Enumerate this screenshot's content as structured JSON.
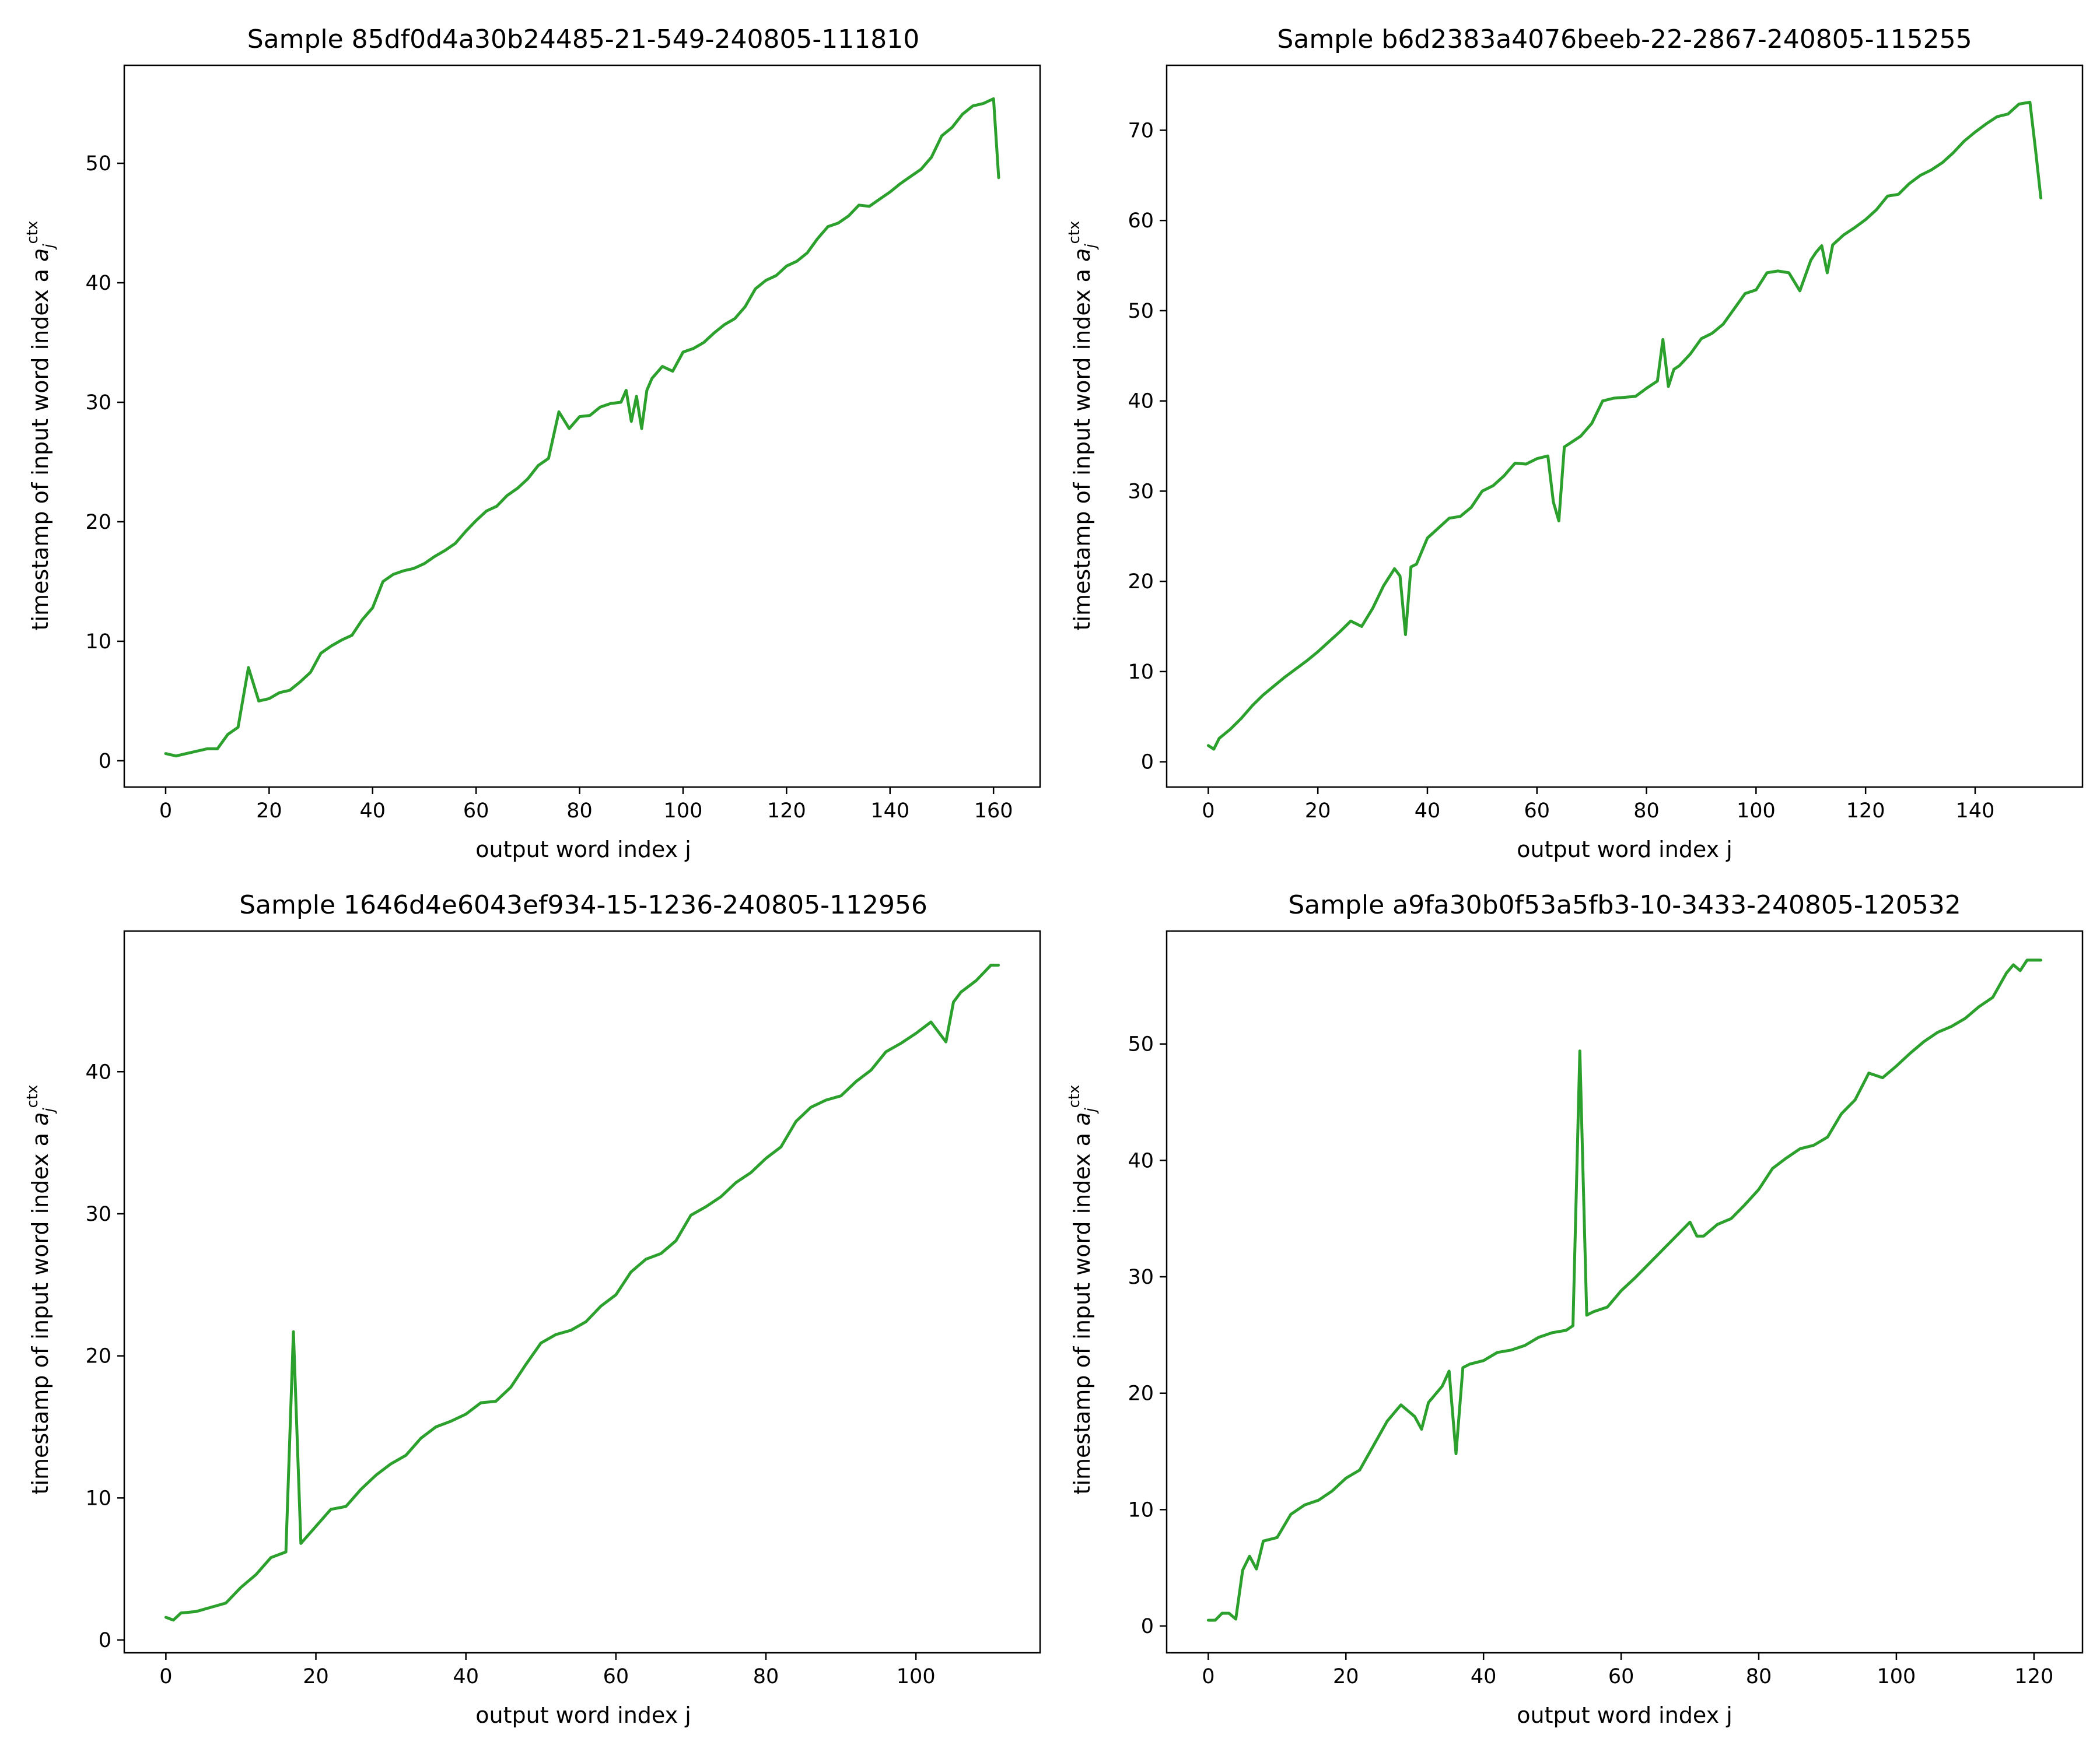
{
  "figure": {
    "line_color": "#2ca02c",
    "background": "#ffffff"
  },
  "chart_data": [
    {
      "type": "line",
      "title": "Sample 85df0d4a30b24485-21-549-240805-111810",
      "xlabel": "output word index j",
      "ylabel": "timestamp of input word index a",
      "ylabel_math": {
        "sub": "j",
        "sup": "ctx"
      },
      "xlim": [
        -8,
        169
      ],
      "ylim": [
        -2.2,
        58.2
      ],
      "xticks": [
        0,
        20,
        40,
        60,
        80,
        100,
        120,
        140,
        160
      ],
      "yticks": [
        0,
        10,
        20,
        30,
        40,
        50
      ],
      "grid": false,
      "x": [
        0,
        2,
        4,
        6,
        8,
        10,
        12,
        14,
        16,
        18,
        20,
        22,
        24,
        26,
        28,
        30,
        32,
        34,
        36,
        38,
        40,
        42,
        44,
        46,
        48,
        50,
        52,
        54,
        56,
        58,
        60,
        62,
        64,
        66,
        68,
        70,
        72,
        74,
        76,
        78,
        80,
        82,
        84,
        86,
        88,
        89,
        90,
        91,
        92,
        93,
        94,
        96,
        98,
        100,
        102,
        104,
        106,
        108,
        110,
        112,
        114,
        116,
        118,
        120,
        122,
        124,
        126,
        128,
        130,
        132,
        134,
        136,
        138,
        140,
        142,
        144,
        146,
        148,
        150,
        152,
        154,
        156,
        158,
        160,
        161
      ],
      "y": [
        0.6,
        0.4,
        0.6,
        0.8,
        1.0,
        1.0,
        2.2,
        2.8,
        7.8,
        5.0,
        5.2,
        5.7,
        5.9,
        6.6,
        7.4,
        9.0,
        9.6,
        10.1,
        10.5,
        11.8,
        12.8,
        15.0,
        15.6,
        15.9,
        16.1,
        16.5,
        17.1,
        17.6,
        18.2,
        19.2,
        20.1,
        20.9,
        21.3,
        22.2,
        22.8,
        23.6,
        24.7,
        25.3,
        29.2,
        27.8,
        28.8,
        28.9,
        29.6,
        29.9,
        30.0,
        31.0,
        28.4,
        30.5,
        27.8,
        31.0,
        32.0,
        33.0,
        32.6,
        34.2,
        34.5,
        35.0,
        35.8,
        36.5,
        37.0,
        38.0,
        39.5,
        40.2,
        40.6,
        41.4,
        41.8,
        42.5,
        43.7,
        44.7,
        45.0,
        45.6,
        46.5,
        46.4,
        47.0,
        47.6,
        48.3,
        48.9,
        49.5,
        50.5,
        52.3,
        53.0,
        54.1,
        54.8,
        55.0,
        55.4,
        48.8
      ]
    },
    {
      "type": "line",
      "title": "Sample b6d2383a4076beeb-22-2867-240805-115255",
      "xlabel": "output word index j",
      "ylabel": "timestamp of input word index a",
      "ylabel_math": {
        "sub": "j",
        "sup": "ctx"
      },
      "xlim": [
        -7.6,
        159.6
      ],
      "ylim": [
        -2.8,
        77.2
      ],
      "xticks": [
        0,
        20,
        40,
        60,
        80,
        100,
        120,
        140
      ],
      "yticks": [
        0,
        10,
        20,
        30,
        40,
        50,
        60,
        70
      ],
      "grid": false,
      "x": [
        0,
        1,
        2,
        4,
        6,
        8,
        10,
        12,
        14,
        16,
        18,
        20,
        22,
        24,
        26,
        28,
        30,
        32,
        34,
        35,
        36,
        37,
        38,
        40,
        42,
        44,
        46,
        48,
        50,
        52,
        54,
        56,
        58,
        60,
        62,
        63,
        64,
        65,
        66,
        68,
        70,
        72,
        74,
        76,
        78,
        80,
        82,
        83,
        84,
        85,
        86,
        88,
        90,
        92,
        94,
        96,
        98,
        100,
        102,
        104,
        106,
        108,
        110,
        111,
        112,
        113,
        114,
        116,
        118,
        120,
        122,
        124,
        126,
        128,
        130,
        132,
        134,
        136,
        138,
        140,
        142,
        144,
        146,
        148,
        150,
        151,
        152
      ],
      "y": [
        1.8,
        1.4,
        2.6,
        3.6,
        4.8,
        6.2,
        7.4,
        8.4,
        9.4,
        10.3,
        11.2,
        12.2,
        13.3,
        14.4,
        15.6,
        15.0,
        17.0,
        19.5,
        21.4,
        20.6,
        14.1,
        21.6,
        21.9,
        24.8,
        25.9,
        27.0,
        27.2,
        28.2,
        30.0,
        30.6,
        31.7,
        33.1,
        33.0,
        33.6,
        33.9,
        28.8,
        26.7,
        34.9,
        35.3,
        36.1,
        37.5,
        40.0,
        40.3,
        40.4,
        40.5,
        41.4,
        42.2,
        46.8,
        41.6,
        43.5,
        43.9,
        45.2,
        46.9,
        47.5,
        48.5,
        50.2,
        51.9,
        52.3,
        54.2,
        54.4,
        54.2,
        52.2,
        55.6,
        56.5,
        57.2,
        54.2,
        57.3,
        58.4,
        59.2,
        60.1,
        61.2,
        62.7,
        62.9,
        64.1,
        65.0,
        65.6,
        66.4,
        67.5,
        68.8,
        69.8,
        70.7,
        71.5,
        71.8,
        72.9,
        73.1,
        68.0,
        62.5
      ]
    },
    {
      "type": "line",
      "title": "Sample 1646d4e6043ef934-15-1236-240805-112956",
      "xlabel": "output word index j",
      "ylabel": "timestamp of input word index a",
      "ylabel_math": {
        "sub": "j",
        "sup": "ctx"
      },
      "xlim": [
        -5.55,
        116.55
      ],
      "ylim": [
        -0.9,
        49.9
      ],
      "xticks": [
        0,
        20,
        40,
        60,
        80,
        100
      ],
      "yticks": [
        0,
        10,
        20,
        30,
        40
      ],
      "grid": false,
      "x": [
        0,
        1,
        2,
        4,
        6,
        8,
        10,
        12,
        14,
        16,
        17,
        18,
        20,
        22,
        24,
        26,
        28,
        30,
        32,
        34,
        36,
        38,
        40,
        42,
        44,
        46,
        48,
        50,
        52,
        54,
        56,
        58,
        60,
        62,
        64,
        66,
        68,
        70,
        72,
        74,
        76,
        78,
        80,
        82,
        84,
        86,
        88,
        90,
        92,
        94,
        96,
        98,
        100,
        102,
        104,
        105,
        106,
        108,
        110,
        111
      ],
      "y": [
        1.6,
        1.4,
        1.9,
        2.0,
        2.3,
        2.6,
        3.7,
        4.6,
        5.8,
        6.2,
        21.7,
        6.8,
        8.0,
        9.2,
        9.4,
        10.6,
        11.6,
        12.4,
        13.0,
        14.2,
        15.0,
        15.4,
        15.9,
        16.7,
        16.8,
        17.8,
        19.4,
        20.9,
        21.5,
        21.8,
        22.4,
        23.5,
        24.3,
        25.9,
        26.8,
        27.2,
        28.1,
        29.9,
        30.5,
        31.2,
        32.2,
        32.9,
        33.9,
        34.7,
        36.5,
        37.5,
        38.0,
        38.3,
        39.3,
        40.1,
        41.4,
        42.0,
        42.7,
        43.5,
        42.1,
        44.9,
        45.6,
        46.4,
        47.5,
        47.5
      ]
    },
    {
      "type": "line",
      "title": "Sample a9fa30b0f53a5fb3-10-3433-240805-120532",
      "xlabel": "output word index j",
      "ylabel": "timestamp of input word index a",
      "ylabel_math": {
        "sub": "j",
        "sup": "ctx"
      },
      "xlim": [
        -6.05,
        127.05
      ],
      "ylim": [
        -2.3,
        59.7
      ],
      "xticks": [
        0,
        20,
        40,
        60,
        80,
        100,
        120
      ],
      "yticks": [
        0,
        10,
        20,
        30,
        40,
        50
      ],
      "grid": false,
      "x": [
        0,
        1,
        2,
        3,
        4,
        5,
        6,
        7,
        8,
        10,
        12,
        14,
        16,
        18,
        20,
        22,
        24,
        26,
        28,
        30,
        31,
        32,
        34,
        35,
        36,
        37,
        38,
        40,
        42,
        44,
        46,
        48,
        50,
        52,
        53,
        54,
        55,
        56,
        58,
        60,
        62,
        64,
        66,
        68,
        70,
        71,
        72,
        74,
        76,
        78,
        80,
        82,
        84,
        86,
        88,
        90,
        92,
        94,
        96,
        98,
        100,
        102,
        104,
        106,
        108,
        110,
        112,
        114,
        116,
        117,
        118,
        119,
        120,
        121
      ],
      "y": [
        0.5,
        0.5,
        1.1,
        1.1,
        0.6,
        4.8,
        6.0,
        4.9,
        7.3,
        7.6,
        9.6,
        10.4,
        10.8,
        11.6,
        12.7,
        13.4,
        15.5,
        17.6,
        19.0,
        18.0,
        16.9,
        19.2,
        20.6,
        21.9,
        14.8,
        22.2,
        22.5,
        22.8,
        23.5,
        23.7,
        24.1,
        24.8,
        25.2,
        25.4,
        25.8,
        49.4,
        26.7,
        27.0,
        27.4,
        28.8,
        29.9,
        31.1,
        32.3,
        33.5,
        34.7,
        33.5,
        33.5,
        34.5,
        35.0,
        36.2,
        37.5,
        39.3,
        40.2,
        41.0,
        41.3,
        42.0,
        44.0,
        45.2,
        47.5,
        47.1,
        48.1,
        49.2,
        50.2,
        51.0,
        51.5,
        52.2,
        53.2,
        54.0,
        56.1,
        56.8,
        56.3,
        57.2,
        57.2,
        57.2
      ]
    }
  ]
}
